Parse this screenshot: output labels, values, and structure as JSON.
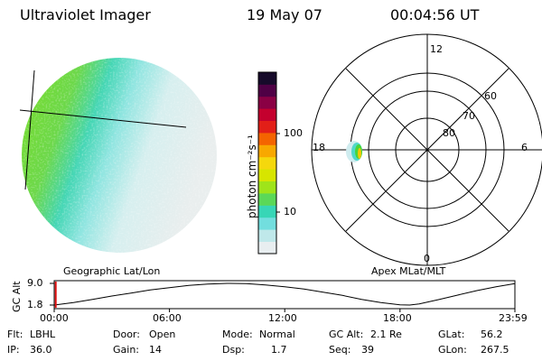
{
  "header": {
    "instrument": "Ultraviolet Imager",
    "date": "19 May 07",
    "time": "00:04:56 UT"
  },
  "colorbar": {
    "label": "photon cm⁻²s⁻¹",
    "ticks": [
      "100",
      "10"
    ],
    "scale": "log",
    "colors": [
      "#e8eef0",
      "#bfe8ea",
      "#72dede",
      "#37d6b6",
      "#5bd858",
      "#9fe41a",
      "#d7e500",
      "#f5d80d",
      "#f8a800",
      "#f46400",
      "#e21f18",
      "#c4002e",
      "#8a0044",
      "#4f0045",
      "#160a2a"
    ]
  },
  "polar": {
    "mlt_labels": [
      "12",
      "18",
      "6",
      "0"
    ],
    "lat_labels": [
      "60",
      "70",
      "80"
    ]
  },
  "panels": {
    "left_caption": "Geographic Lat/Lon",
    "right_caption": "Apex MLat/MLT"
  },
  "altitude_plot": {
    "ylabel": "GC Alt",
    "yticks": [
      "9.0",
      "1.8"
    ],
    "xticks": [
      "00:00",
      "06:00",
      "12:00",
      "18:00",
      "23:59"
    ]
  },
  "chart_data": {
    "type": "line",
    "title": "",
    "xlabel": "",
    "ylabel": "GC Alt",
    "x": [
      0,
      1,
      2,
      3,
      4,
      5,
      6,
      7,
      8,
      9,
      10,
      11,
      12,
      13,
      14,
      15,
      16,
      17,
      18,
      18.5,
      19,
      20,
      21,
      22,
      23,
      23.98
    ],
    "series": [
      {
        "values": [
          1.8,
          2.6,
          3.7,
          4.8,
          5.8,
          6.8,
          7.6,
          8.3,
          8.8,
          9.0,
          8.9,
          8.5,
          7.9,
          7.1,
          6.1,
          5.0,
          3.7,
          2.6,
          1.9,
          1.8,
          2.2,
          3.6,
          5.1,
          6.6,
          7.9,
          8.9
        ]
      }
    ],
    "ylim": [
      1.8,
      9.0
    ],
    "xlim": [
      0,
      23.98
    ],
    "current_time_marker": 0.08
  },
  "info": {
    "row1": [
      {
        "label": "Flt:",
        "value": "LBHL"
      },
      {
        "label": "Door:",
        "value": "Open"
      },
      {
        "label": "Mode:",
        "value": "Normal"
      },
      {
        "label": "GC Alt:",
        "value": "2.1 Re"
      },
      {
        "label": "GLat:",
        "value": "56.2"
      }
    ],
    "row2": [
      {
        "label": "IP:",
        "value": "36.0"
      },
      {
        "label": "Gain:",
        "value": "14"
      },
      {
        "label": "Dsp:",
        "value": "1.7"
      },
      {
        "label": "Seq:",
        "value": "39"
      },
      {
        "label": "GLon:",
        "value": "267.5"
      }
    ]
  }
}
